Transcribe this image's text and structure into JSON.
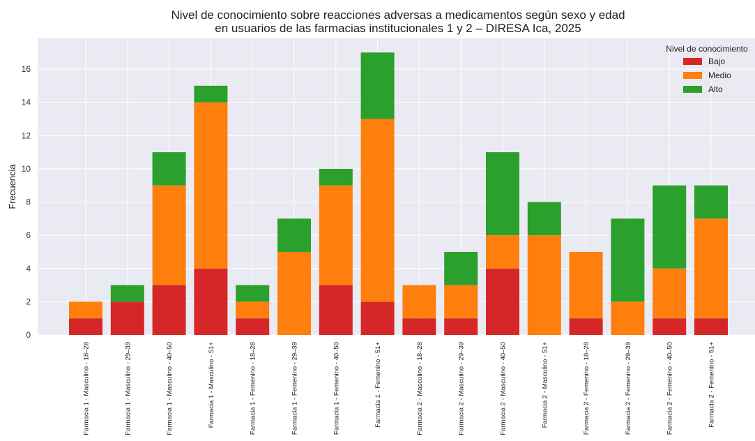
{
  "chart_data": {
    "type": "bar",
    "stacked": true,
    "title": "Nivel de conocimiento sobre reacciones adversas a medicamentos según sexo y edad",
    "subtitle": "en usuarios de las farmacias institucionales 1 y 2 – DIRESA Ica, 2025",
    "xlabel": "",
    "ylabel": "Frecuencia",
    "ylim": [
      0,
      17.85
    ],
    "yticks": [
      0,
      2,
      4,
      6,
      8,
      10,
      12,
      14,
      16
    ],
    "grid": true,
    "legend": {
      "title": "Nivel de conocimiento",
      "position": "top-right"
    },
    "categories": [
      "Farmacia 1 - Masculino - 18–28",
      "Farmacia 1 - Masculino - 29–39",
      "Farmacia 1 - Masculino - 40–50",
      "Farmacia 1 - Masculino - 51+",
      "Farmacia 1 - Femenino - 18–28",
      "Farmacia 1 - Femenino - 29–39",
      "Farmacia 1 - Femenino - 40–50",
      "Farmacia 1 - Femenino - 51+",
      "Farmacia 2 - Masculino - 18–28",
      "Farmacia 2 - Masculino - 29–39",
      "Farmacia 2 - Masculino - 40–50",
      "Farmacia 2 - Masculino - 51+",
      "Farmacia 2 - Femenino - 18–28",
      "Farmacia 2 - Femenino - 29–39",
      "Farmacia 2 - Femenino - 40–50",
      "Farmacia 2 - Femenino - 51+"
    ],
    "series": [
      {
        "name": "Bajo",
        "color": "#d62728",
        "values": [
          1,
          2,
          3,
          4,
          1,
          0,
          3,
          2,
          1,
          1,
          4,
          0,
          1,
          0,
          1,
          1
        ]
      },
      {
        "name": "Medio",
        "color": "#ff7f0e",
        "values": [
          1,
          0,
          6,
          10,
          1,
          5,
          6,
          11,
          2,
          2,
          2,
          6,
          4,
          2,
          3,
          6
        ]
      },
      {
        "name": "Alto",
        "color": "#2ca02c",
        "values": [
          0,
          1,
          2,
          1,
          1,
          2,
          1,
          4,
          0,
          2,
          5,
          2,
          0,
          5,
          5,
          2
        ]
      }
    ]
  }
}
